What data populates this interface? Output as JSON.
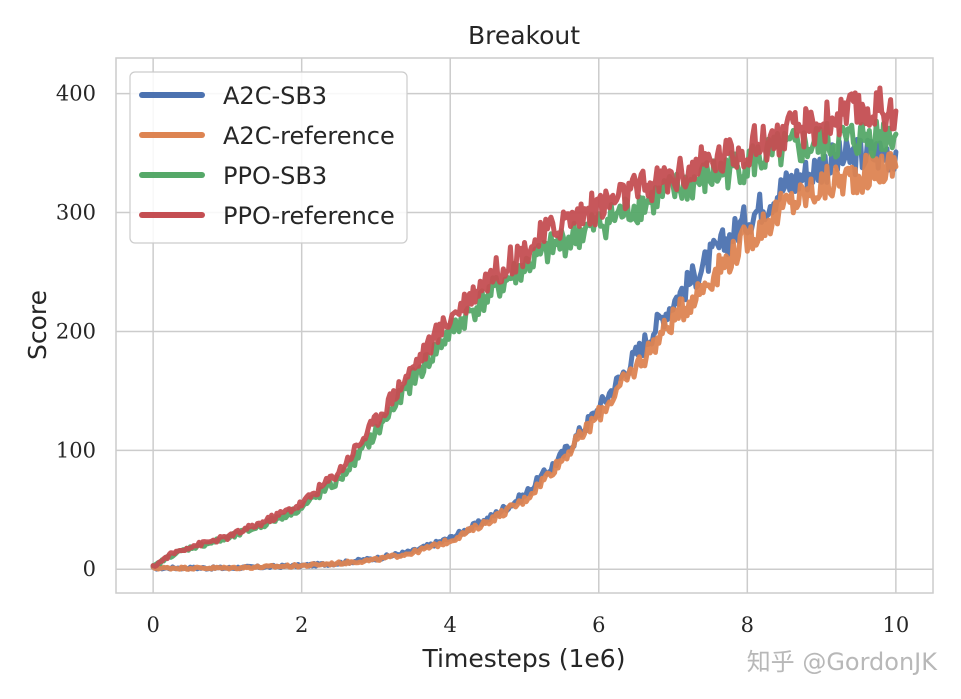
{
  "chart_data": {
    "type": "line",
    "title": "Breakout",
    "xlabel": "Timesteps (1e6)",
    "ylabel": "Score",
    "xlim": [
      -0.5,
      10.5
    ],
    "ylim": [
      -20,
      430
    ],
    "xticks": [
      0,
      2,
      4,
      6,
      8,
      10
    ],
    "xtick_labels": [
      "0",
      "2",
      "4",
      "6",
      "8",
      "10"
    ],
    "yticks": [
      0,
      100,
      200,
      300,
      400
    ],
    "ytick_labels": [
      "0",
      "100",
      "200",
      "300",
      "400"
    ],
    "grid": true,
    "legend_position": "top-left",
    "series": [
      {
        "name": "A2C-SB3",
        "color": "#4c72b0",
        "x": [
          0,
          0.5,
          1,
          1.5,
          2,
          2.5,
          3,
          3.5,
          4,
          4.5,
          5,
          5.5,
          6,
          6.5,
          7,
          7.5,
          8,
          8.5,
          9,
          9.5,
          10
        ],
        "y": [
          1,
          1,
          1,
          2,
          3,
          5,
          9,
          15,
          26,
          42,
          62,
          95,
          135,
          180,
          225,
          262,
          295,
          322,
          340,
          348,
          352
        ]
      },
      {
        "name": "A2C-reference",
        "color": "#dd8452",
        "x": [
          0,
          0.5,
          1,
          1.5,
          2,
          2.5,
          3,
          3.5,
          4,
          4.5,
          5,
          5.5,
          6,
          6.5,
          7,
          7.5,
          8,
          8.5,
          9,
          9.5,
          10
        ],
        "y": [
          1,
          1,
          1,
          2,
          3,
          5,
          8,
          14,
          24,
          40,
          58,
          92,
          130,
          170,
          210,
          245,
          278,
          305,
          322,
          332,
          340
        ]
      },
      {
        "name": "PPO-SB3",
        "color": "#55a868",
        "x": [
          0,
          0.25,
          0.5,
          1,
          1.5,
          2,
          2.5,
          3,
          3.5,
          4,
          4.5,
          5,
          5.5,
          6,
          6.5,
          7,
          7.5,
          8,
          8.5,
          9,
          9.5,
          10
        ],
        "y": [
          2,
          12,
          18,
          26,
          38,
          52,
          75,
          115,
          160,
          200,
          230,
          255,
          275,
          290,
          305,
          318,
          330,
          342,
          352,
          358,
          362,
          368
        ]
      },
      {
        "name": "PPO-reference",
        "color": "#c44e52",
        "x": [
          0,
          0.25,
          0.5,
          1,
          1.5,
          2,
          2.5,
          3,
          3.5,
          4,
          4.5,
          5,
          5.5,
          6,
          6.5,
          7,
          7.5,
          8,
          8.5,
          9,
          9.5,
          10
        ],
        "y": [
          2,
          13,
          19,
          27,
          40,
          55,
          82,
          125,
          170,
          212,
          245,
          268,
          292,
          305,
          318,
          330,
          342,
          355,
          365,
          375,
          385,
          388
        ]
      }
    ]
  },
  "watermark": "知乎 @GordonJK"
}
